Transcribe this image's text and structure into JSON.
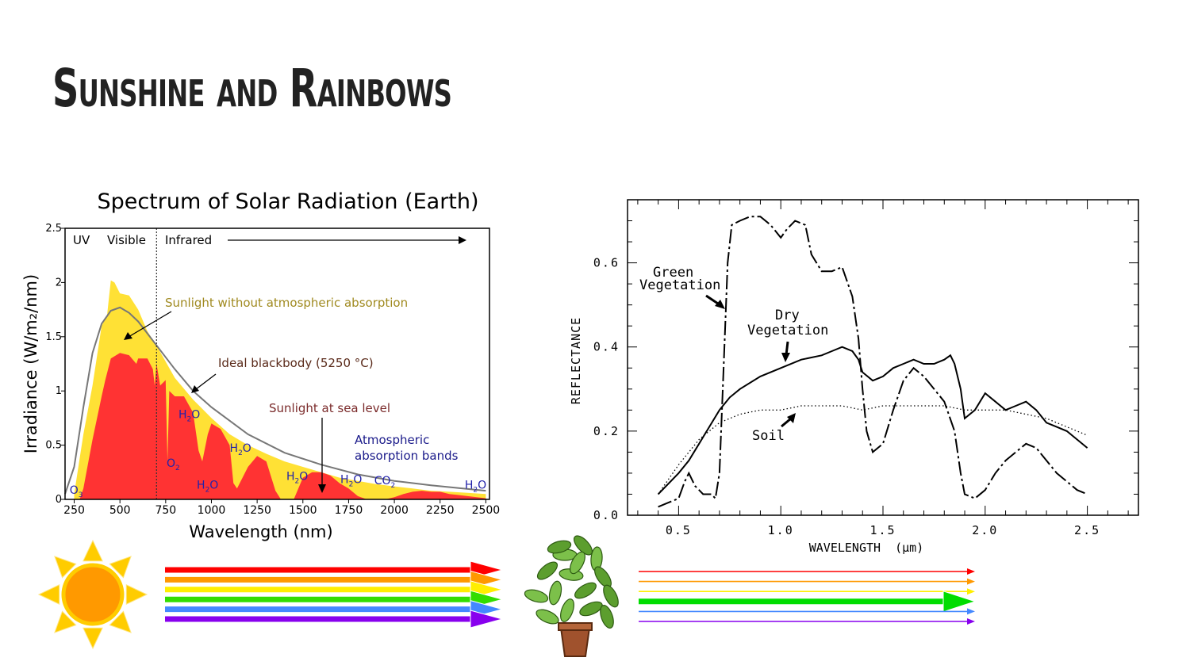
{
  "slide": {
    "title": "Sunshine and Rainbows"
  },
  "chart_data": [
    {
      "type": "area",
      "title": "Spectrum of Solar Radiation (Earth)",
      "xlabel": "Wavelength (nm)",
      "ylabel": "Irradiance (W/m₂/nm)",
      "xlim": [
        200,
        2520
      ],
      "ylim": [
        0,
        2.5
      ],
      "xticks": [
        "250",
        "500",
        "750",
        "1000",
        "1250",
        "1500",
        "1750",
        "2000",
        "2250",
        "2500"
      ],
      "yticks": [
        "0",
        "0.5",
        "1",
        "1.5",
        "2",
        "2.5"
      ],
      "regions": {
        "uv": "UV",
        "visible": "Visible",
        "infrared": "Infrared",
        "visible_boundary_nm": 700
      },
      "annotations": {
        "no_absorption": "Sunlight without atmospheric absorption",
        "blackbody": "Ideal blackbody (5250 °C)",
        "sea_level": "Sunlight at sea level",
        "bands_line1": "Atmospheric",
        "bands_line2": "absorption bands"
      },
      "absorbers": [
        {
          "label": "H",
          "sub": "2",
          "rest": "O",
          "x": 820,
          "y": 0.75
        },
        {
          "label": "H",
          "sub": "2",
          "rest": "O",
          "x": 1100,
          "y": 0.44
        },
        {
          "label": "O",
          "sub": "2",
          "rest": "",
          "x": 755,
          "y": 0.3
        },
        {
          "label": "H",
          "sub": "2",
          "rest": "O",
          "x": 920,
          "y": 0.1
        },
        {
          "label": "H",
          "sub": "2",
          "rest": "O",
          "x": 1410,
          "y": 0.18
        },
        {
          "label": "CO",
          "sub": "2",
          "rest": "",
          "x": 1890,
          "y": 0.14
        },
        {
          "label": "H",
          "sub": "2",
          "rest": "O",
          "x": 1705,
          "y": 0.15
        },
        {
          "label": "H",
          "sub": "2",
          "rest": "O",
          "x": 2385,
          "y": 0.1
        },
        {
          "label": "O",
          "sub": "3",
          "rest": "",
          "x": 225,
          "y": 0.05
        }
      ],
      "colors": {
        "top_of_atmosphere": "#ffe135",
        "sea_level": "#ff3333",
        "blackbody": "#777777"
      },
      "series": [
        {
          "name": "Sunlight without atmospheric absorption",
          "x": [
            250,
            300,
            350,
            400,
            430,
            450,
            470,
            500,
            550,
            600,
            650,
            700,
            800,
            900,
            1000,
            1100,
            1200,
            1300,
            1400,
            1500,
            1600,
            1700,
            1800,
            1900,
            2000,
            2100,
            2200,
            2300,
            2400,
            2500
          ],
          "y": [
            0.05,
            0.6,
            1.05,
            1.6,
            1.7,
            2.02,
            2.0,
            1.9,
            1.88,
            1.75,
            1.55,
            1.42,
            1.12,
            0.92,
            0.75,
            0.6,
            0.5,
            0.42,
            0.35,
            0.3,
            0.25,
            0.2,
            0.17,
            0.14,
            0.12,
            0.1,
            0.08,
            0.07,
            0.06,
            0.05
          ]
        },
        {
          "name": "Ideal blackbody (5250 °C)",
          "x": [
            200,
            250,
            300,
            350,
            400,
            450,
            500,
            550,
            600,
            700,
            800,
            900,
            1000,
            1200,
            1400,
            1600,
            1800,
            2000,
            2200,
            2500
          ],
          "y": [
            0.05,
            0.3,
            0.85,
            1.35,
            1.62,
            1.74,
            1.77,
            1.72,
            1.64,
            1.42,
            1.2,
            1.0,
            0.85,
            0.6,
            0.43,
            0.32,
            0.23,
            0.17,
            0.13,
            0.08
          ]
        },
        {
          "name": "Sunlight at sea level",
          "x": [
            280,
            300,
            350,
            400,
            420,
            450,
            500,
            550,
            590,
            600,
            650,
            680,
            690,
            700,
            720,
            750,
            760,
            770,
            800,
            850,
            900,
            930,
            950,
            980,
            1000,
            1050,
            1100,
            1120,
            1140,
            1200,
            1250,
            1300,
            1350,
            1380,
            1400,
            1450,
            1500,
            1550,
            1600,
            1650,
            1700,
            1750,
            1800,
            1850,
            1900,
            1950,
            2000,
            2050,
            2100,
            2150,
            2200,
            2250,
            2300,
            2350,
            2400,
            2450,
            2500
          ],
          "y": [
            0.0,
            0.1,
            0.55,
            0.95,
            1.1,
            1.3,
            1.35,
            1.33,
            1.25,
            1.3,
            1.3,
            1.2,
            1.05,
            1.25,
            1.05,
            1.1,
            0.35,
            1.0,
            0.95,
            0.95,
            0.8,
            0.45,
            0.35,
            0.6,
            0.7,
            0.65,
            0.5,
            0.15,
            0.1,
            0.3,
            0.4,
            0.35,
            0.08,
            0.0,
            0.0,
            0.0,
            0.2,
            0.25,
            0.25,
            0.22,
            0.15,
            0.1,
            0.03,
            0.0,
            0.0,
            0.0,
            0.02,
            0.05,
            0.07,
            0.08,
            0.07,
            0.07,
            0.05,
            0.04,
            0.03,
            0.02,
            0.01
          ]
        }
      ]
    },
    {
      "type": "line",
      "xlabel": "WAVELENGTH  (μm)",
      "ylabel": "REFLECTANCE",
      "xlim": [
        0.25,
        2.75
      ],
      "ylim": [
        0.0,
        0.75
      ],
      "xticks": [
        "0.5",
        "1.0",
        "1.5",
        "2.0",
        "2.5"
      ],
      "yticks": [
        "0.0",
        "0.2",
        "0.4",
        "0.6"
      ],
      "annotations": {
        "green_line1": "Green",
        "green_line2": "Vegetation",
        "dry_line1": "Dry",
        "dry_line2": "Vegetation",
        "soil": "Soil"
      },
      "series": [
        {
          "name": "Green Vegetation",
          "style": "long-dash-dot",
          "x": [
            0.4,
            0.45,
            0.5,
            0.53,
            0.55,
            0.58,
            0.62,
            0.66,
            0.68,
            0.7,
            0.72,
            0.74,
            0.76,
            0.8,
            0.85,
            0.9,
            0.95,
            1.0,
            1.03,
            1.07,
            1.12,
            1.15,
            1.2,
            1.25,
            1.3,
            1.35,
            1.38,
            1.4,
            1.42,
            1.45,
            1.5,
            1.55,
            1.6,
            1.65,
            1.7,
            1.75,
            1.8,
            1.85,
            1.88,
            1.9,
            1.95,
            2.0,
            2.05,
            2.1,
            2.15,
            2.2,
            2.25,
            2.3,
            2.35,
            2.4,
            2.45,
            2.5
          ],
          "y": [
            0.02,
            0.03,
            0.04,
            0.08,
            0.1,
            0.07,
            0.05,
            0.05,
            0.04,
            0.1,
            0.35,
            0.6,
            0.69,
            0.7,
            0.71,
            0.71,
            0.69,
            0.66,
            0.68,
            0.7,
            0.69,
            0.62,
            0.58,
            0.58,
            0.59,
            0.52,
            0.42,
            0.3,
            0.2,
            0.15,
            0.17,
            0.25,
            0.32,
            0.35,
            0.33,
            0.3,
            0.27,
            0.2,
            0.1,
            0.05,
            0.04,
            0.06,
            0.1,
            0.13,
            0.15,
            0.17,
            0.16,
            0.13,
            0.1,
            0.08,
            0.06,
            0.05
          ]
        },
        {
          "name": "Dry Vegetation",
          "style": "solid",
          "x": [
            0.4,
            0.5,
            0.55,
            0.6,
            0.65,
            0.7,
            0.75,
            0.8,
            0.9,
            1.0,
            1.1,
            1.2,
            1.25,
            1.3,
            1.35,
            1.38,
            1.4,
            1.45,
            1.5,
            1.55,
            1.6,
            1.65,
            1.7,
            1.75,
            1.8,
            1.83,
            1.85,
            1.88,
            1.9,
            1.95,
            2.0,
            2.05,
            2.1,
            2.15,
            2.2,
            2.25,
            2.3,
            2.35,
            2.4,
            2.45,
            2.5
          ],
          "y": [
            0.05,
            0.1,
            0.13,
            0.17,
            0.21,
            0.25,
            0.28,
            0.3,
            0.33,
            0.35,
            0.37,
            0.38,
            0.39,
            0.4,
            0.39,
            0.37,
            0.34,
            0.32,
            0.33,
            0.35,
            0.36,
            0.37,
            0.36,
            0.36,
            0.37,
            0.38,
            0.36,
            0.3,
            0.23,
            0.25,
            0.29,
            0.27,
            0.25,
            0.26,
            0.27,
            0.25,
            0.22,
            0.21,
            0.2,
            0.18,
            0.16
          ]
        },
        {
          "name": "Soil",
          "style": "dotted",
          "x": [
            0.4,
            0.5,
            0.6,
            0.7,
            0.8,
            0.9,
            1.0,
            1.1,
            1.2,
            1.3,
            1.4,
            1.5,
            1.6,
            1.7,
            1.8,
            1.9,
            2.0,
            2.1,
            2.2,
            2.3,
            2.4,
            2.5
          ],
          "y": [
            0.05,
            0.12,
            0.18,
            0.22,
            0.24,
            0.25,
            0.25,
            0.26,
            0.26,
            0.26,
            0.25,
            0.26,
            0.26,
            0.26,
            0.26,
            0.25,
            0.25,
            0.25,
            0.24,
            0.23,
            0.21,
            0.19
          ]
        }
      ]
    }
  ],
  "illustration": {
    "incoming_rays": [
      "#ff0000",
      "#ff9900",
      "#ffee00",
      "#33dd00",
      "#4488ff",
      "#8800ee"
    ],
    "reflected_rays": [
      "#ff0000",
      "#ff9900",
      "#ffee00",
      "#00dd00",
      "#4488ff",
      "#8800ee"
    ],
    "reflected_dominant": 3,
    "sun_color": "#ff9900",
    "sun_ray_color": "#ffcc00",
    "icons": [
      "sun-icon",
      "plant-icon"
    ]
  }
}
